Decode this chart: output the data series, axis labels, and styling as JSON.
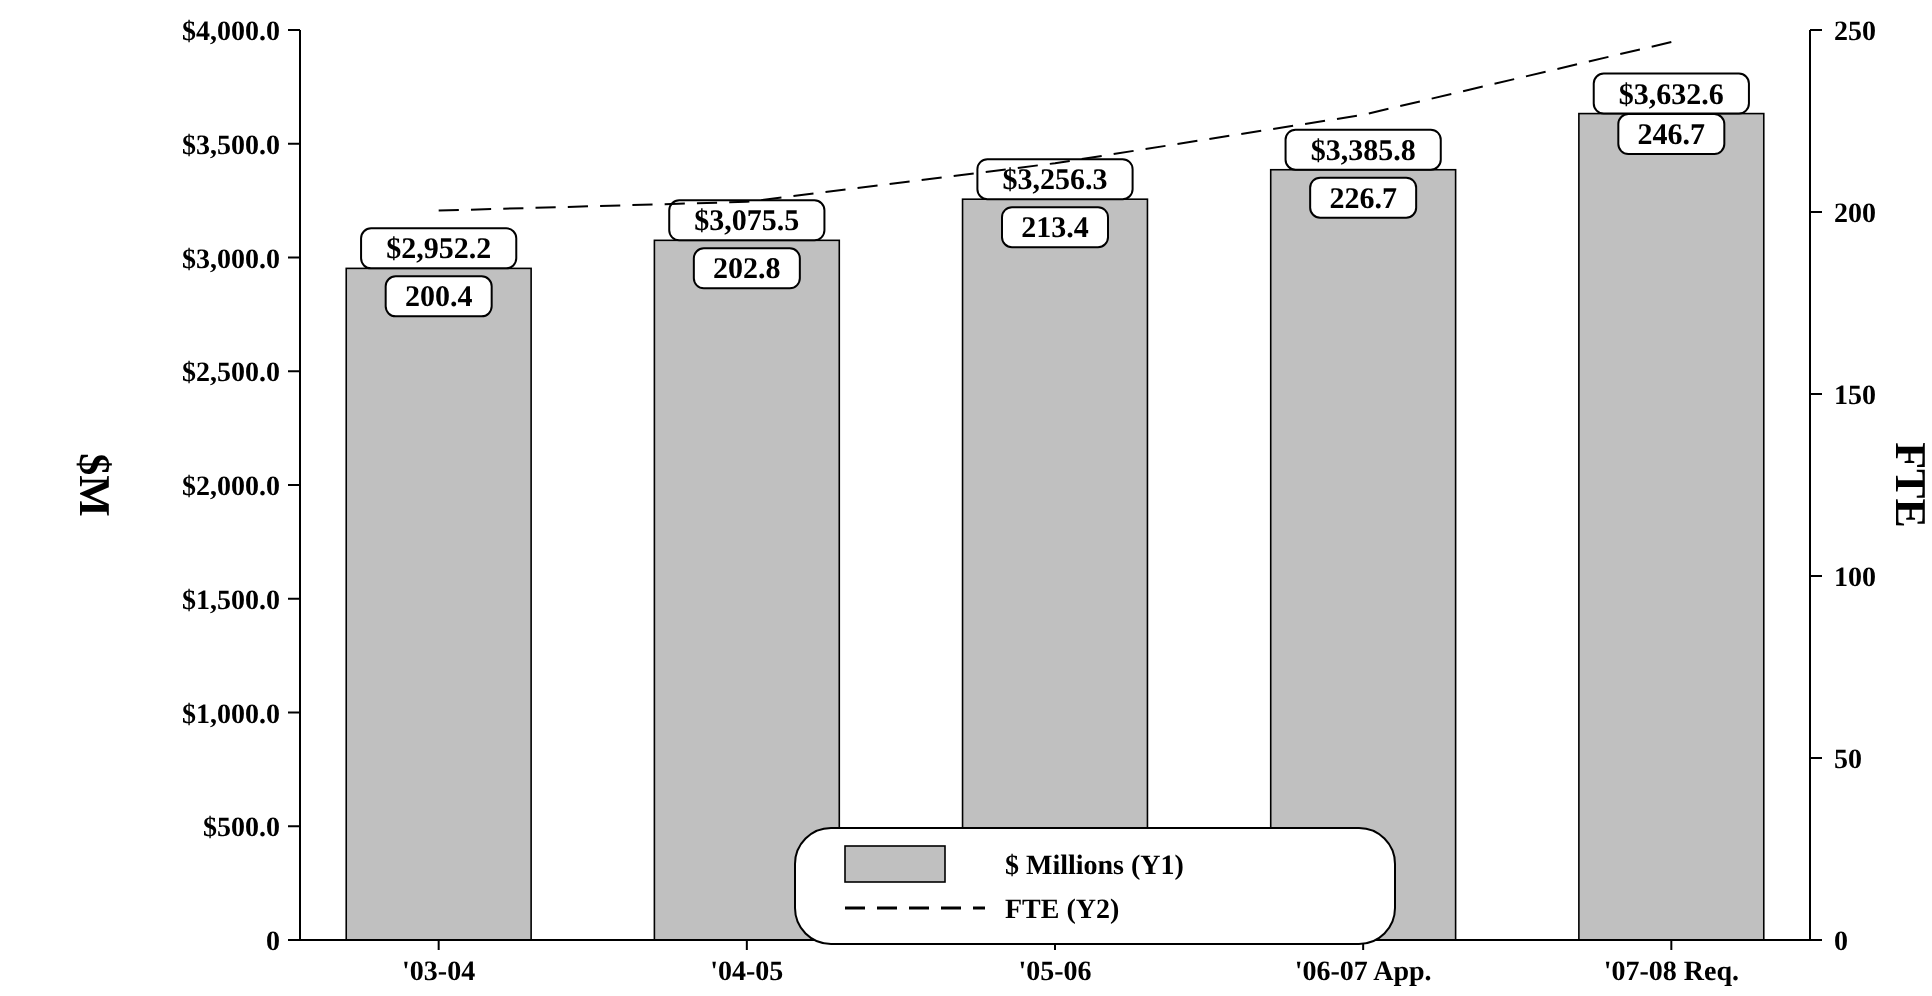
{
  "chart_data": {
    "type": "bar",
    "ylabel": "$M",
    "y2label": "FTE",
    "categories": [
      "'03-04",
      "'04-05",
      "'05-06",
      "'06-07 App.",
      "'07-08 Req."
    ],
    "series": [
      {
        "name": "$ Millions (Y1)",
        "color": "#c0c0c0",
        "values": [
          2952.2,
          3075.5,
          3256.3,
          3385.8,
          3632.6
        ],
        "value_labels": [
          "$2,952.2",
          "$3,075.5",
          "$3,256.3",
          "$3,385.8",
          "$3,632.6"
        ]
      },
      {
        "name": "FTE (Y2)",
        "type": "line",
        "axis": "y2",
        "color": "#000000",
        "line_style": "dashed",
        "marker": "none",
        "values": [
          200.4,
          202.8,
          213.4,
          226.7,
          246.7
        ],
        "value_labels": [
          "200.4",
          "202.8",
          "213.4",
          "226.7",
          "246.7"
        ]
      }
    ],
    "ylim": [
      0,
      4000
    ],
    "yticks": [
      {
        "value": 0,
        "label": "0"
      },
      {
        "value": 500,
        "label": "$500.0"
      },
      {
        "value": 1000,
        "label": "$1,000.0"
      },
      {
        "value": 1500,
        "label": "$1,500.0"
      },
      {
        "value": 2000,
        "label": "$2,000.0"
      },
      {
        "value": 2500,
        "label": "$2,500.0"
      },
      {
        "value": 3000,
        "label": "$3,000.0"
      },
      {
        "value": 3500,
        "label": "$3,500.0"
      },
      {
        "value": 4000,
        "label": "$4,000.0"
      }
    ],
    "y2lim": [
      0,
      250
    ],
    "y2ticks": [
      0,
      50,
      100,
      150,
      200,
      250
    ],
    "grid": false,
    "legend": "bottom"
  }
}
